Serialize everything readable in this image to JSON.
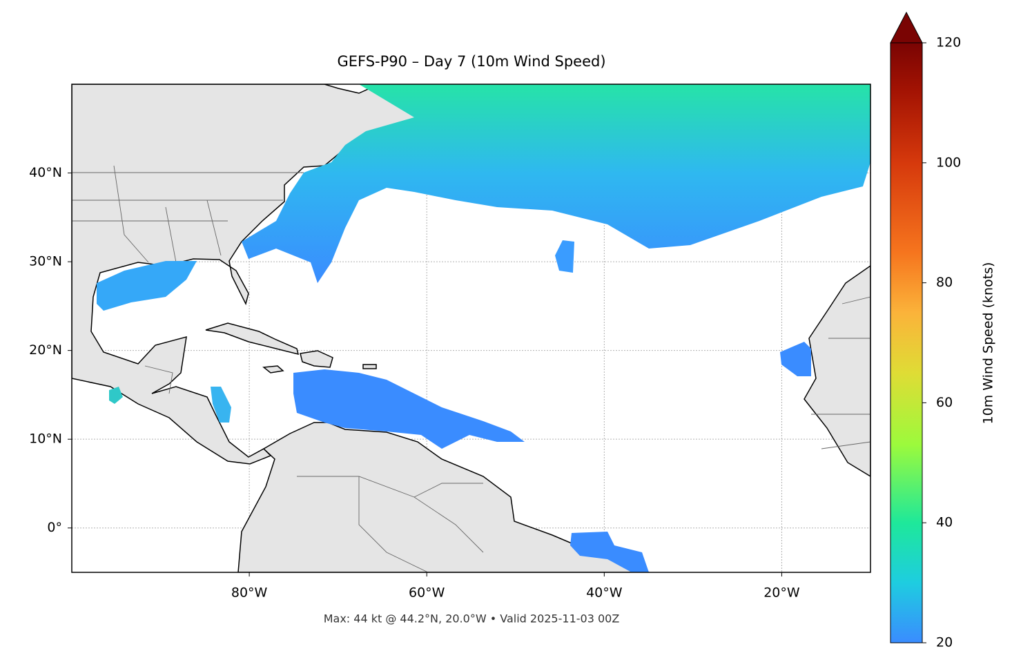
{
  "chart_data": {
    "type": "map",
    "title": "GEFS-P90 – Day 7 (10m Wind Speed)",
    "caption": "Max: 44 kt @ 44.2°N, 20.0°W • Valid 2025-11-03 00Z",
    "colorbar_label": "10m Wind Speed (knots)",
    "xlim": [
      -100,
      -10
    ],
    "ylim": [
      -5,
      50
    ],
    "xticks": [
      {
        "value": -80,
        "label": "80°W"
      },
      {
        "value": -60,
        "label": "60°W"
      },
      {
        "value": -40,
        "label": "40°W"
      },
      {
        "value": -20,
        "label": "20°W"
      }
    ],
    "yticks": [
      {
        "value": 0,
        "label": "0°"
      },
      {
        "value": 10,
        "label": "10°N"
      },
      {
        "value": 20,
        "label": "20°N"
      },
      {
        "value": 30,
        "label": "30°N"
      },
      {
        "value": 40,
        "label": "40°N"
      }
    ],
    "clim": [
      20,
      120
    ],
    "cticks": [
      20,
      40,
      60,
      80,
      100,
      120
    ],
    "grid": true
  }
}
